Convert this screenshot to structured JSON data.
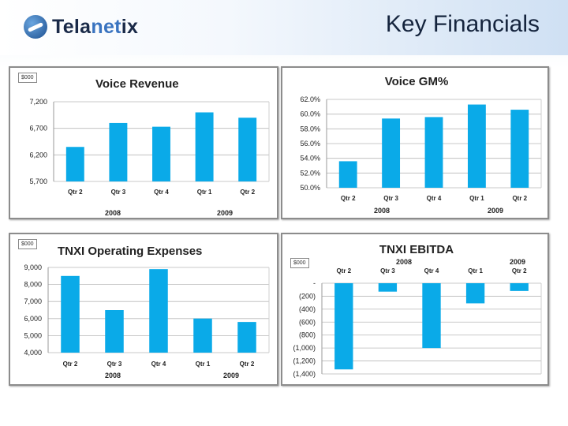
{
  "header": {
    "logo_pre": "Tela",
    "logo_accent": "net",
    "logo_post": "ix",
    "title": "Key Financials"
  },
  "colors": {
    "bar": "#0aaae8",
    "grid": "#b8b8b8"
  },
  "chart_data": [
    {
      "id": "voice-revenue",
      "type": "bar",
      "title": "Voice Revenue",
      "unit": "$000",
      "categories": [
        "Qtr 2",
        "Qtr 3",
        "Qtr 4",
        "Qtr 1",
        "Qtr 2"
      ],
      "values": [
        6350,
        6800,
        6730,
        7000,
        6900
      ],
      "ylim": [
        5700,
        7200
      ],
      "yticks": [
        7200,
        6700,
        6200,
        5700
      ],
      "ytick_labels": [
        "7,200",
        "6,700",
        "6,200",
        "5,700"
      ],
      "years": [
        "2008",
        "2009"
      ],
      "grid": true
    },
    {
      "id": "voice-gm",
      "type": "bar",
      "title": "Voice GM%",
      "unit": "",
      "categories": [
        "Qtr 2",
        "Qtr 3",
        "Qtr 4",
        "Qtr 1",
        "Qtr 2"
      ],
      "values": [
        53.6,
        59.4,
        59.6,
        61.3,
        60.6
      ],
      "ylim": [
        50,
        62
      ],
      "yticks": [
        62,
        60,
        58,
        56,
        54,
        52,
        50
      ],
      "ytick_labels": [
        "62.0%",
        "60.0%",
        "58.0%",
        "56.0%",
        "54.0%",
        "52.0%",
        "50.0%"
      ],
      "years": [
        "2008",
        "2009"
      ],
      "grid": true
    },
    {
      "id": "tnxi-operating-expenses",
      "type": "bar",
      "title": "TNXI Operating Expenses",
      "unit": "$000",
      "categories": [
        "Qtr 2",
        "Qtr 3",
        "Qtr 4",
        "Qtr 1",
        "Qtr 2"
      ],
      "values": [
        8500,
        6500,
        8900,
        6000,
        5800
      ],
      "ylim": [
        4000,
        9000
      ],
      "yticks": [
        9000,
        8000,
        7000,
        6000,
        5000,
        4000
      ],
      "ytick_labels": [
        "9,000",
        "8,000",
        "7,000",
        "6,000",
        "5,000",
        "4,000"
      ],
      "years": [
        "2008",
        "2009"
      ],
      "grid": true
    },
    {
      "id": "tnxi-ebitda",
      "type": "bar",
      "title": "TNXI EBITDA",
      "unit": "$000",
      "categories": [
        "Qtr 2",
        "Qtr 3",
        "Qtr 4",
        "Qtr 1",
        "Qtr 2"
      ],
      "values": [
        -1330,
        -130,
        -1000,
        -310,
        -120
      ],
      "ylim": [
        -1400,
        0
      ],
      "yticks": [
        0,
        -200,
        -400,
        -600,
        -800,
        -1000,
        -1200,
        -1400
      ],
      "ytick_labels": [
        "-",
        "(200)",
        "(400)",
        "(600)",
        "(800)",
        "(1,000)",
        "(1,200)",
        "(1,400)"
      ],
      "years": [
        "2008",
        "2009"
      ],
      "grid": true
    }
  ]
}
